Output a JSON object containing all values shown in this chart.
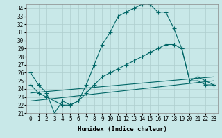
{
  "xlabel": "Humidex (Indice chaleur)",
  "ylabel": "",
  "bg_color": "#c8e8e8",
  "line_color": "#006666",
  "xlim": [
    -0.5,
    23.5
  ],
  "ylim": [
    21,
    34.5
  ],
  "yticks": [
    21,
    22,
    23,
    24,
    25,
    26,
    27,
    28,
    29,
    30,
    31,
    32,
    33,
    34
  ],
  "xticks": [
    0,
    1,
    2,
    3,
    4,
    5,
    6,
    7,
    8,
    9,
    10,
    11,
    12,
    13,
    14,
    15,
    16,
    17,
    18,
    19,
    20,
    21,
    22,
    23
  ],
  "curve1_x": [
    0,
    1,
    2,
    3,
    4,
    5,
    6,
    7,
    8,
    9,
    10,
    11,
    12,
    13,
    14,
    15,
    16,
    17,
    18,
    19,
    20,
    21,
    22,
    23
  ],
  "curve1_y": [
    26.0,
    24.5,
    23.5,
    21.0,
    22.5,
    22.0,
    22.5,
    24.5,
    27.0,
    29.5,
    31.0,
    33.0,
    33.5,
    34.0,
    34.5,
    34.5,
    33.5,
    33.5,
    31.5,
    29.0,
    25.0,
    25.5,
    25.0,
    24.5
  ],
  "curve2_x": [
    0,
    1,
    2,
    3,
    4,
    5,
    6,
    7,
    8,
    9,
    10,
    11,
    12,
    13,
    14,
    15,
    16,
    17,
    18,
    19,
    20,
    21,
    22,
    23
  ],
  "curve2_y": [
    24.5,
    23.5,
    23.0,
    22.5,
    22.0,
    22.0,
    22.5,
    23.5,
    24.5,
    25.5,
    26.0,
    26.5,
    27.0,
    27.5,
    28.0,
    28.5,
    29.0,
    29.5,
    29.5,
    29.0,
    25.0,
    25.0,
    24.5,
    24.5
  ],
  "curve3_x": [
    0,
    23
  ],
  "curve3_y": [
    23.5,
    25.5
  ],
  "curve4_x": [
    0,
    23
  ],
  "curve4_y": [
    22.5,
    25.0
  ],
  "marker": "+",
  "markersize": 4,
  "linewidth": 0.8,
  "grid_color": "#aecece",
  "tick_fontsize": 5.5,
  "label_fontsize": 6.5
}
